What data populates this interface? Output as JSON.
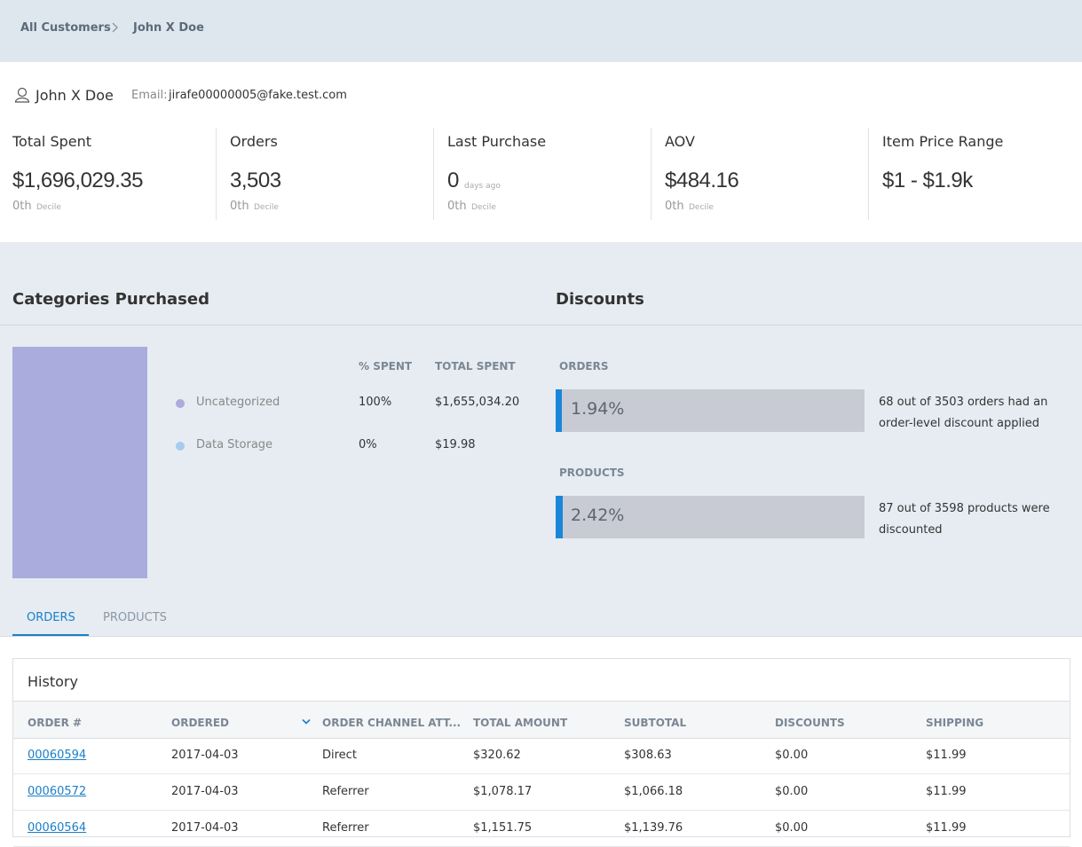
{
  "breadcrumb": [
    "All Customers",
    "John X Doe"
  ],
  "customer": {
    "name": "John X Doe",
    "email_label": "Email:",
    "email": "jirafe00000005@fake.test.com"
  },
  "stats": [
    {
      "label": "Total Spent",
      "value": "$1,696,029.35",
      "decile": "0th",
      "decile_label": "Decile"
    },
    {
      "label": "Orders",
      "value": "3,503",
      "decile": "0th",
      "decile_label": "Decile"
    },
    {
      "label": "Last Purchase",
      "value": "0",
      "unit": "days ago",
      "decile": "0th",
      "decile_label": "Decile"
    },
    {
      "label": "AOV",
      "value": "$484.16",
      "decile": "0th",
      "decile_label": "Decile"
    },
    {
      "label": "Item Price Range",
      "value": "$1 - $1.9k"
    }
  ],
  "categories": {
    "title": "Categories Purchased",
    "columns": [
      "% SPENT",
      "TOTAL SPENT"
    ],
    "rows": [
      {
        "name": "Uncategorized",
        "color": "#a9acdc",
        "percent": "100%",
        "total": "$1,655,034.20"
      },
      {
        "name": "Data Storage",
        "color": "#a7cbee",
        "percent": "0%",
        "total": "$19.98"
      }
    ]
  },
  "discounts": {
    "title": "Discounts",
    "items": [
      {
        "label": "ORDERS",
        "percent": "1.94%",
        "text": "68 out of 3503 orders had an order-level discount applied"
      },
      {
        "label": "PRODUCTS",
        "percent": "2.42%",
        "text": "87 out of 3598 products were discounted"
      }
    ]
  },
  "tabs": [
    "ORDERS",
    "PRODUCTS"
  ],
  "history": {
    "title": "History",
    "columns": [
      "ORDER #",
      "ORDERED",
      "ORDER CHANNEL ATT...",
      "TOTAL AMOUNT",
      "SUBTOTAL",
      "DISCOUNTS",
      "SHIPPING"
    ],
    "rows": [
      [
        "00060594",
        "2017-04-03",
        "Direct",
        "$320.62",
        "$308.63",
        "$0.00",
        "$11.99"
      ],
      [
        "00060572",
        "2017-04-03",
        "Referrer",
        "$1,078.17",
        "$1,066.18",
        "$0.00",
        "$11.99"
      ],
      [
        "00060564",
        "2017-04-03",
        "Referrer",
        "$1,151.75",
        "$1,139.76",
        "$0.00",
        "$11.99"
      ]
    ]
  }
}
